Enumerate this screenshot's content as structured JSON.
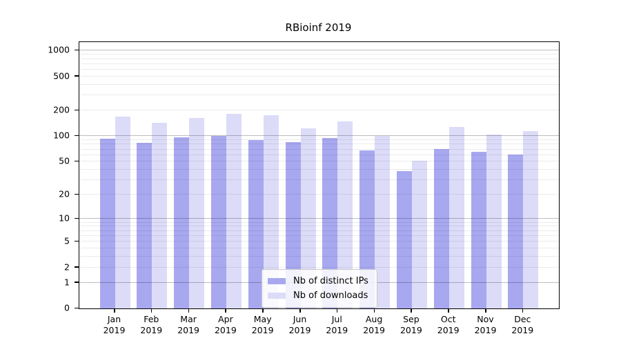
{
  "title": "RBioinf 2019",
  "chart_data": {
    "type": "bar",
    "title": "RBioinf 2019",
    "scale": "log10(value+1)",
    "ylim": [
      0,
      1260
    ],
    "y_ticks": [
      0,
      1,
      2,
      5,
      10,
      20,
      50,
      100,
      200,
      500,
      1000
    ],
    "major_grid_values": [
      1,
      10,
      100,
      1000
    ],
    "grid": "on",
    "legend_position": "inside-bottom-center",
    "categories": [
      "Jan 2019",
      "Feb 2019",
      "Mar 2019",
      "Apr 2019",
      "May 2019",
      "Jun 2019",
      "Jul 2019",
      "Aug 2019",
      "Sep 2019",
      "Oct 2019",
      "Nov 2019",
      "Dec 2019"
    ],
    "series": [
      {
        "name": "Nb of distinct IPs",
        "color": "#a8a8f0",
        "values": [
          93,
          83,
          98,
          100,
          91,
          85,
          96,
          68,
          39,
          71,
          66,
          61
        ]
      },
      {
        "name": "Nb of downloads",
        "color": "#dcdcf8",
        "values": [
          170,
          143,
          165,
          183,
          175,
          125,
          148,
          100,
          51,
          128,
          104,
          116
        ]
      }
    ]
  },
  "colors": {
    "frame": "#000000",
    "major_grid": "#bdbdbd",
    "minor_grid": "#ececec",
    "background": "#ffffff",
    "text": "#000000"
  }
}
